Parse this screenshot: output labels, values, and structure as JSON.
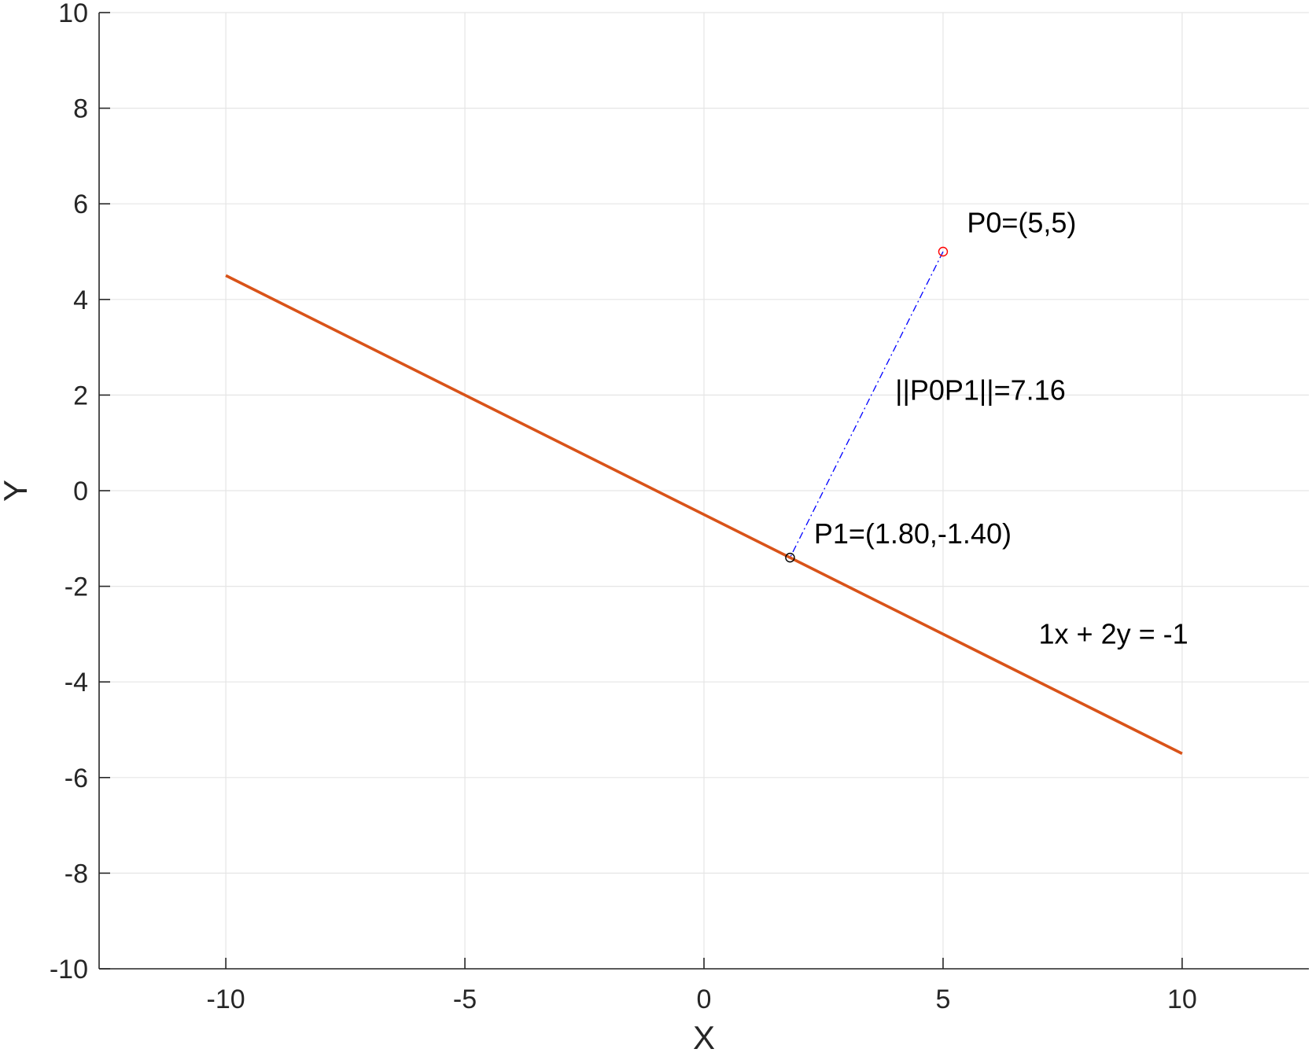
{
  "chart_data": {
    "type": "line",
    "title": "",
    "xlabel": "X",
    "ylabel": "Y",
    "xlim": [
      -12.65,
      12.65
    ],
    "ylim": [
      -10,
      10
    ],
    "grid": true,
    "xticks": [
      -10,
      -5,
      0,
      5,
      10
    ],
    "yticks": [
      -10,
      -8,
      -6,
      -4,
      -2,
      0,
      2,
      4,
      6,
      8,
      10
    ],
    "xtick_labels": [
      "-10",
      "-5",
      "0",
      "5",
      "10"
    ],
    "ytick_labels": [
      "-10",
      "-8",
      "-6",
      "-4",
      "-2",
      "0",
      "2",
      "4",
      "6",
      "8",
      "10"
    ],
    "series": [
      {
        "x": [
          -10,
          10
        ],
        "y": [
          4.5,
          -5.5
        ],
        "color": "#D95319",
        "style": "solid"
      },
      {
        "x": [
          5,
          1.8
        ],
        "y": [
          5,
          -1.4
        ],
        "color": "#0000FF",
        "style": "dash-dot"
      }
    ],
    "points": [
      {
        "x": 5,
        "y": 5,
        "marker": "circle",
        "color": "#FF0000"
      },
      {
        "x": 1.8,
        "y": -1.4,
        "marker": "circle",
        "color": "#000000"
      }
    ],
    "annotations": [
      {
        "text": "P0=(5,5)",
        "x": 5.5,
        "y": 5.4
      },
      {
        "text": "||P0P1||=7.16",
        "x": 4,
        "y": 1.9
      },
      {
        "text": "P1=(1.80,-1.40)",
        "x": 2.3,
        "y": -1.1
      },
      {
        "text": "1x + 2y = -1",
        "x": 7,
        "y": -3.2
      }
    ],
    "colors": {
      "grid": "#E5E5E5",
      "axis": "#262626"
    }
  }
}
